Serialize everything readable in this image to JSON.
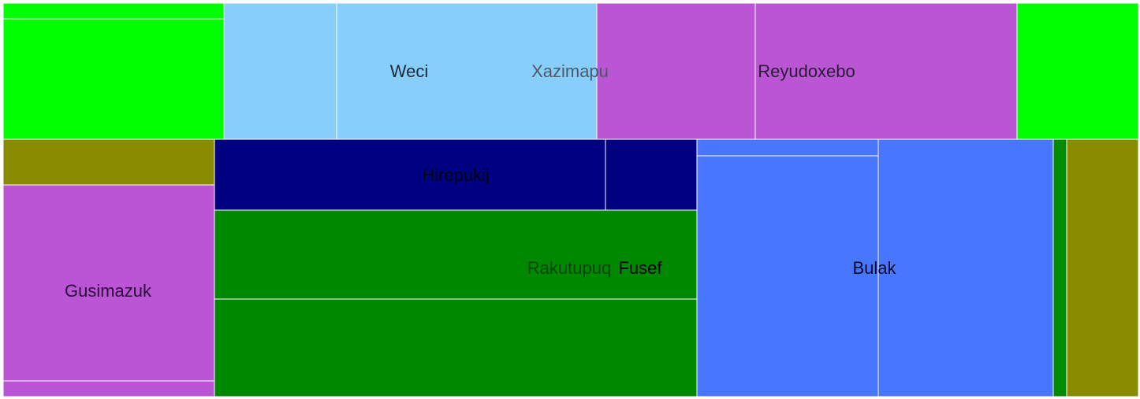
{
  "chart_data": {
    "type": "treemap",
    "title": "",
    "groups": [
      {
        "name": "",
        "color": "#00ff00",
        "children": [
          {
            "name": "",
            "value": 1.04
          },
          {
            "name": "",
            "value": 8.96
          }
        ]
      },
      {
        "name": "",
        "color": "#87cefa",
        "children": [
          {
            "name": "",
            "value": 4.56
          },
          {
            "name": "Weci",
            "value": 10.44
          }
        ]
      },
      {
        "name": "Xazimapu",
        "label_only": true
      },
      {
        "name": "",
        "color": "#ba55d3",
        "children": [
          {
            "name": "",
            "value": 6.59
          },
          {
            "name": "Reyudoxebo",
            "value": 10.91
          }
        ]
      },
      {
        "name": "",
        "color": "#00ff00",
        "children": [
          {
            "name": "",
            "value": 5.0
          }
        ]
      },
      {
        "name": "",
        "color": "#8b8b00",
        "children": [
          {
            "name": "",
            "value": 3.0
          }
        ]
      },
      {
        "name": "",
        "color": "#ba55d3",
        "children": [
          {
            "name": "Gusimazuk",
            "value": 12.5
          },
          {
            "name": "",
            "value": 1.0
          }
        ]
      },
      {
        "name": "Hirepukij",
        "color": "#000080",
        "children": [
          {
            "name": "Hirepukij",
            "value": 8.59
          },
          {
            "name": "",
            "value": 2.01
          }
        ]
      },
      {
        "name": "Rakutupuq",
        "color": "#008800",
        "children": [
          {
            "name": "Fusef",
            "value": 12.0
          },
          {
            "name": "",
            "value": 13.2
          }
        ]
      },
      {
        "name": "",
        "color": "#4876ff",
        "children": [
          {
            "name": "",
            "value": 0.9
          },
          {
            "name": "Bulak",
            "value": 13.3
          },
          {
            "name": "",
            "value": 18.0
          }
        ]
      },
      {
        "name": "",
        "color": "#008b00",
        "children": [
          {
            "name": "",
            "value": 1.4
          }
        ]
      },
      {
        "name": "",
        "color": "#8b8b00",
        "children": [
          {
            "name": "",
            "value": 7.4
          }
        ]
      }
    ],
    "labels": [
      "Weci",
      "Xazimapu",
      "Reyudoxebo",
      "Hirepukij",
      "Gusimazuk",
      "Rakutupuq",
      "Fusef",
      "Bulak"
    ]
  }
}
